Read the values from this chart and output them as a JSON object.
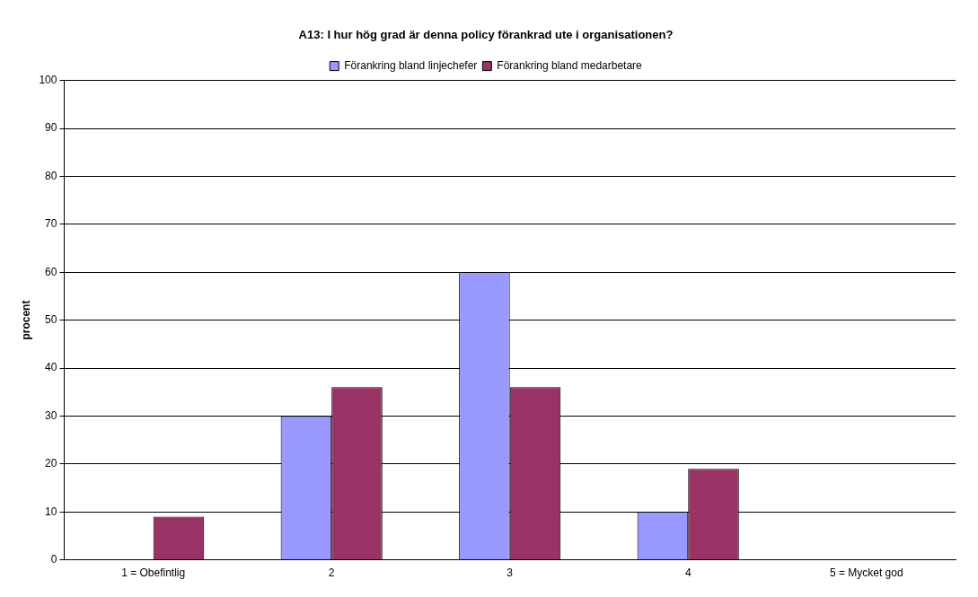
{
  "chart_data": {
    "type": "bar",
    "title": "A13: I hur hög grad är denna policy förankrad ute i organisationen?",
    "ylabel": "procent",
    "categories": [
      "1 = Obefintlig",
      "2",
      "3",
      "4",
      "5 = Mycket god"
    ],
    "series": [
      {
        "name": "Förankring bland linjechefer",
        "color": "#9999ff",
        "values": [
          0,
          30,
          60,
          10,
          0
        ]
      },
      {
        "name": "Förankring bland medarbetare",
        "color": "#993366",
        "values": [
          9,
          36,
          36,
          19,
          0
        ]
      }
    ],
    "ylim": [
      0,
      100
    ],
    "yticks": [
      0,
      10,
      20,
      30,
      40,
      50,
      60,
      70,
      80,
      90,
      100
    ],
    "grid": "y",
    "legend": "top"
  }
}
